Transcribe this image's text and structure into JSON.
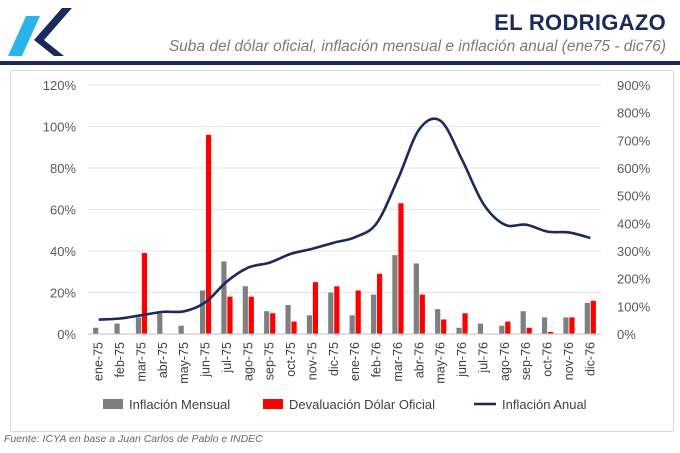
{
  "header": {
    "title": "EL RODRIGAZO",
    "subtitle": "Suba del dólar oficial, inflación mensual e inflación anual (ene75 - dic76)",
    "logo_icon": "k-arrow-logo-icon"
  },
  "footer": {
    "source": "Fuente: ICYA en base a Juan Carlos de Pablo e INDEC"
  },
  "colors": {
    "title": "#1b2a5e",
    "bar_inflation": "#7f7f7f",
    "bar_devaluation": "#ff0000",
    "line_annual": "#1b2a5e",
    "logo_light": "#2bb4e8",
    "logo_dark": "#1b2a5e"
  },
  "chart_data": {
    "type": "bar+line",
    "categories": [
      "ene-75",
      "feb-75",
      "mar-75",
      "abr-75",
      "may-75",
      "jun-75",
      "jul-75",
      "ago-75",
      "sep-75",
      "oct-75",
      "nov-75",
      "dic-75",
      "ene-76",
      "feb-76",
      "mar-76",
      "abr-76",
      "may-76",
      "jun-76",
      "jul-76",
      "ago-76",
      "sep-76",
      "oct-76",
      "nov-76",
      "dic-76"
    ],
    "left_axis": {
      "ticks": [
        "0%",
        "20%",
        "40%",
        "60%",
        "80%",
        "100%",
        "120%"
      ],
      "min": 0,
      "max": 120
    },
    "right_axis": {
      "ticks": [
        "0%",
        "100%",
        "200%",
        "300%",
        "400%",
        "500%",
        "600%",
        "700%",
        "800%",
        "900%"
      ],
      "min": 0,
      "max": 900
    },
    "grid": true,
    "legend_position": "bottom",
    "series": [
      {
        "name": "Inflación Mensual",
        "type": "bar",
        "axis": "left",
        "values": [
          3,
          5,
          8,
          10,
          4,
          21,
          35,
          23,
          11,
          14,
          9,
          20,
          9,
          19,
          38,
          34,
          12,
          3,
          5,
          4,
          11,
          8,
          8,
          15
        ]
      },
      {
        "name": "Devaluación Dólar Oficial",
        "type": "bar",
        "axis": "left",
        "values": [
          0,
          0,
          39,
          0,
          0,
          96,
          18,
          18,
          10,
          6,
          25,
          23,
          21,
          29,
          63,
          19,
          7,
          10,
          0,
          6,
          3,
          1,
          8,
          16
        ]
      },
      {
        "name": "Inflación Anual",
        "type": "line",
        "axis": "right",
        "values": [
          52,
          56,
          68,
          80,
          82,
          115,
          190,
          240,
          258,
          290,
          308,
          330,
          350,
          400,
          560,
          740,
          770,
          630,
          470,
          395,
          395,
          370,
          367,
          347
        ]
      }
    ]
  }
}
